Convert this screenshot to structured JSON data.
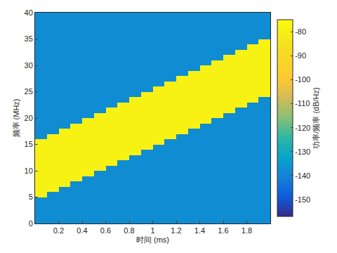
{
  "chart_data": {
    "type": "heatmap",
    "x_label": "时间 (ms)",
    "y_label": "频率 (MHz)",
    "x": [
      0.05,
      0.15,
      0.25,
      0.35,
      0.45,
      0.55,
      0.65,
      0.75,
      0.85,
      0.95,
      1.05,
      1.15,
      1.25,
      1.35,
      1.45,
      1.55,
      1.65,
      1.75,
      1.85,
      1.95
    ],
    "y": [
      0.5,
      1.5,
      2.5,
      3.5,
      4.5,
      5.5,
      6.5,
      7.5,
      8.5,
      9.5,
      10.5,
      11.5,
      12.5,
      13.5,
      14.5,
      15.5,
      16.5,
      17.5,
      18.5,
      19.5,
      20.5,
      21.5,
      22.5,
      23.5,
      24.5,
      25.5,
      26.5,
      27.5,
      28.5,
      29.5,
      30.5,
      31.5,
      32.5,
      33.5,
      34.5,
      35.5,
      36.5,
      37.5,
      38.5,
      39.5
    ],
    "z": [
      [
        -138,
        -138,
        -138,
        -138,
        -138,
        -138,
        -138,
        -138,
        -138,
        -138,
        -138,
        -138,
        -138,
        -138,
        -138,
        -138,
        -138,
        -138,
        -138,
        -138
      ],
      [
        -138,
        -138,
        -138,
        -138,
        -138,
        -138,
        -138,
        -138,
        -138,
        -138,
        -138,
        -138,
        -138,
        -138,
        -138,
        -138,
        -138,
        -138,
        -138,
        -138
      ],
      [
        -138,
        -138,
        -138,
        -138,
        -138,
        -138,
        -138,
        -138,
        -138,
        -138,
        -138,
        -138,
        -138,
        -138,
        -138,
        -138,
        -138,
        -138,
        -138,
        -138
      ],
      [
        -138,
        -138,
        -138,
        -138,
        -138,
        -138,
        -138,
        -138,
        -138,
        -138,
        -138,
        -138,
        -138,
        -138,
        -138,
        -138,
        -138,
        -138,
        -138,
        -138
      ],
      [
        -138,
        -138,
        -138,
        -138,
        -138,
        -138,
        -138,
        -138,
        -138,
        -138,
        -138,
        -138,
        -138,
        -138,
        -138,
        -138,
        -138,
        -138,
        -138,
        -138
      ],
      [
        -79,
        -138,
        -138,
        -138,
        -138,
        -138,
        -138,
        -138,
        -138,
        -138,
        -138,
        -138,
        -138,
        -138,
        -138,
        -138,
        -138,
        -138,
        -138,
        -138
      ],
      [
        -79,
        -79,
        -138,
        -138,
        -138,
        -138,
        -138,
        -138,
        -138,
        -138,
        -138,
        -138,
        -138,
        -138,
        -138,
        -138,
        -138,
        -138,
        -138,
        -138
      ],
      [
        -79,
        -79,
        -79,
        -138,
        -138,
        -138,
        -138,
        -138,
        -138,
        -138,
        -138,
        -138,
        -138,
        -138,
        -138,
        -138,
        -138,
        -138,
        -138,
        -138
      ],
      [
        -79,
        -79,
        -79,
        -79,
        -138,
        -138,
        -138,
        -138,
        -138,
        -138,
        -138,
        -138,
        -138,
        -138,
        -138,
        -138,
        -138,
        -138,
        -138,
        -138
      ],
      [
        -79,
        -79,
        -79,
        -79,
        -79,
        -138,
        -138,
        -138,
        -138,
        -138,
        -138,
        -138,
        -138,
        -138,
        -138,
        -138,
        -138,
        -138,
        -138,
        -138
      ],
      [
        -79,
        -79,
        -79,
        -79,
        -79,
        -79,
        -138,
        -138,
        -138,
        -138,
        -138,
        -138,
        -138,
        -138,
        -138,
        -138,
        -138,
        -138,
        -138,
        -138
      ],
      [
        -79,
        -79,
        -79,
        -79,
        -79,
        -79,
        -79,
        -138,
        -138,
        -138,
        -138,
        -138,
        -138,
        -138,
        -138,
        -138,
        -138,
        -138,
        -138,
        -138
      ],
      [
        -79,
        -79,
        -79,
        -79,
        -79,
        -79,
        -79,
        -79,
        -138,
        -138,
        -138,
        -138,
        -138,
        -138,
        -138,
        -138,
        -138,
        -138,
        -138,
        -138
      ],
      [
        -79,
        -79,
        -79,
        -79,
        -79,
        -79,
        -79,
        -79,
        -79,
        -138,
        -138,
        -138,
        -138,
        -138,
        -138,
        -138,
        -138,
        -138,
        -138,
        -138
      ],
      [
        -79,
        -79,
        -79,
        -79,
        -79,
        -79,
        -79,
        -79,
        -79,
        -79,
        -138,
        -138,
        -138,
        -138,
        -138,
        -138,
        -138,
        -138,
        -138,
        -138
      ],
      [
        -79,
        -79,
        -79,
        -79,
        -79,
        -79,
        -79,
        -79,
        -79,
        -79,
        -79,
        -138,
        -138,
        -138,
        -138,
        -138,
        -138,
        -138,
        -138,
        -138
      ],
      [
        -138,
        -79,
        -79,
        -79,
        -79,
        -79,
        -79,
        -79,
        -79,
        -79,
        -79,
        -79,
        -138,
        -138,
        -138,
        -138,
        -138,
        -138,
        -138,
        -138
      ],
      [
        -138,
        -138,
        -79,
        -79,
        -79,
        -79,
        -79,
        -79,
        -79,
        -79,
        -79,
        -79,
        -79,
        -138,
        -138,
        -138,
        -138,
        -138,
        -138,
        -138
      ],
      [
        -138,
        -138,
        -138,
        -79,
        -79,
        -79,
        -79,
        -79,
        -79,
        -79,
        -79,
        -79,
        -79,
        -79,
        -138,
        -138,
        -138,
        -138,
        -138,
        -138
      ],
      [
        -138,
        -138,
        -138,
        -138,
        -79,
        -79,
        -79,
        -79,
        -79,
        -79,
        -79,
        -79,
        -79,
        -79,
        -79,
        -138,
        -138,
        -138,
        -138,
        -138
      ],
      [
        -138,
        -138,
        -138,
        -138,
        -138,
        -79,
        -79,
        -79,
        -79,
        -79,
        -79,
        -79,
        -79,
        -79,
        -79,
        -79,
        -138,
        -138,
        -138,
        -138
      ],
      [
        -138,
        -138,
        -138,
        -138,
        -138,
        -138,
        -79,
        -79,
        -79,
        -79,
        -79,
        -79,
        -79,
        -79,
        -79,
        -79,
        -79,
        -138,
        -138,
        -138
      ],
      [
        -138,
        -138,
        -138,
        -138,
        -138,
        -138,
        -138,
        -79,
        -79,
        -79,
        -79,
        -79,
        -79,
        -79,
        -79,
        -79,
        -79,
        -79,
        -138,
        -138
      ],
      [
        -138,
        -138,
        -138,
        -138,
        -138,
        -138,
        -138,
        -138,
        -79,
        -79,
        -79,
        -79,
        -79,
        -79,
        -79,
        -79,
        -79,
        -79,
        -79,
        -138
      ],
      [
        -138,
        -138,
        -138,
        -138,
        -138,
        -138,
        -138,
        -138,
        -138,
        -79,
        -79,
        -79,
        -79,
        -79,
        -79,
        -79,
        -79,
        -79,
        -79,
        -79
      ],
      [
        -138,
        -138,
        -138,
        -138,
        -138,
        -138,
        -138,
        -138,
        -138,
        -138,
        -79,
        -79,
        -79,
        -79,
        -79,
        -79,
        -79,
        -79,
        -79,
        -79
      ],
      [
        -138,
        -138,
        -138,
        -138,
        -138,
        -138,
        -138,
        -138,
        -138,
        -138,
        -138,
        -79,
        -79,
        -79,
        -79,
        -79,
        -79,
        -79,
        -79,
        -79
      ],
      [
        -138,
        -138,
        -138,
        -138,
        -138,
        -138,
        -138,
        -138,
        -138,
        -138,
        -138,
        -138,
        -79,
        -79,
        -79,
        -79,
        -79,
        -79,
        -79,
        -79
      ],
      [
        -138,
        -138,
        -138,
        -138,
        -138,
        -138,
        -138,
        -138,
        -138,
        -138,
        -138,
        -138,
        -138,
        -79,
        -79,
        -79,
        -79,
        -79,
        -79,
        -79
      ],
      [
        -138,
        -138,
        -138,
        -138,
        -138,
        -138,
        -138,
        -138,
        -138,
        -138,
        -138,
        -138,
        -138,
        -138,
        -79,
        -79,
        -79,
        -79,
        -79,
        -79
      ],
      [
        -138,
        -138,
        -138,
        -138,
        -138,
        -138,
        -138,
        -138,
        -138,
        -138,
        -138,
        -138,
        -138,
        -138,
        -138,
        -79,
        -79,
        -79,
        -79,
        -79
      ],
      [
        -138,
        -138,
        -138,
        -138,
        -138,
        -138,
        -138,
        -138,
        -138,
        -138,
        -138,
        -138,
        -138,
        -138,
        -138,
        -138,
        -79,
        -79,
        -79,
        -79
      ],
      [
        -138,
        -138,
        -138,
        -138,
        -138,
        -138,
        -138,
        -138,
        -138,
        -138,
        -138,
        -138,
        -138,
        -138,
        -138,
        -138,
        -138,
        -79,
        -79,
        -79
      ],
      [
        -138,
        -138,
        -138,
        -138,
        -138,
        -138,
        -138,
        -138,
        -138,
        -138,
        -138,
        -138,
        -138,
        -138,
        -138,
        -138,
        -138,
        -138,
        -79,
        -79
      ],
      [
        -138,
        -138,
        -138,
        -138,
        -138,
        -138,
        -138,
        -138,
        -138,
        -138,
        -138,
        -138,
        -138,
        -138,
        -138,
        -138,
        -138,
        -138,
        -138,
        -79
      ],
      [
        -138,
        -138,
        -138,
        -138,
        -138,
        -138,
        -138,
        -138,
        -138,
        -138,
        -138,
        -138,
        -138,
        -138,
        -138,
        -138,
        -138,
        -138,
        -138,
        -138
      ],
      [
        -138,
        -138,
        -138,
        -138,
        -138,
        -138,
        -138,
        -138,
        -138,
        -138,
        -138,
        -138,
        -138,
        -138,
        -138,
        -138,
        -138,
        -138,
        -138,
        -138
      ],
      [
        -138,
        -138,
        -138,
        -138,
        -138,
        -138,
        -138,
        -138,
        -138,
        -138,
        -138,
        -138,
        -138,
        -138,
        -138,
        -138,
        -138,
        -138,
        -138,
        -138
      ],
      [
        -138,
        -138,
        -138,
        -138,
        -138,
        -138,
        -138,
        -138,
        -138,
        -138,
        -138,
        -138,
        -138,
        -138,
        -138,
        -138,
        -138,
        -138,
        -138,
        -138
      ],
      [
        -138,
        -138,
        -138,
        -138,
        -138,
        -138,
        -138,
        -138,
        -138,
        -138,
        -138,
        -138,
        -138,
        -138,
        -138,
        -138,
        -138,
        -138,
        -138,
        -138
      ]
    ],
    "xlim": [
      0,
      2
    ],
    "xticks": [
      0.2,
      0.4,
      0.6,
      0.8,
      1,
      1.2,
      1.4,
      1.6,
      1.8
    ],
    "ylim": [
      0,
      40
    ],
    "yticks": [
      0,
      5,
      10,
      15,
      20,
      25,
      30,
      35,
      40
    ],
    "colorbar": {
      "title": "功率/频率 (dB/Hz)",
      "range": [
        -157,
        -75
      ],
      "ticks": [
        -150,
        -140,
        -130,
        -120,
        -110,
        -100,
        -90,
        -80
      ]
    }
  }
}
